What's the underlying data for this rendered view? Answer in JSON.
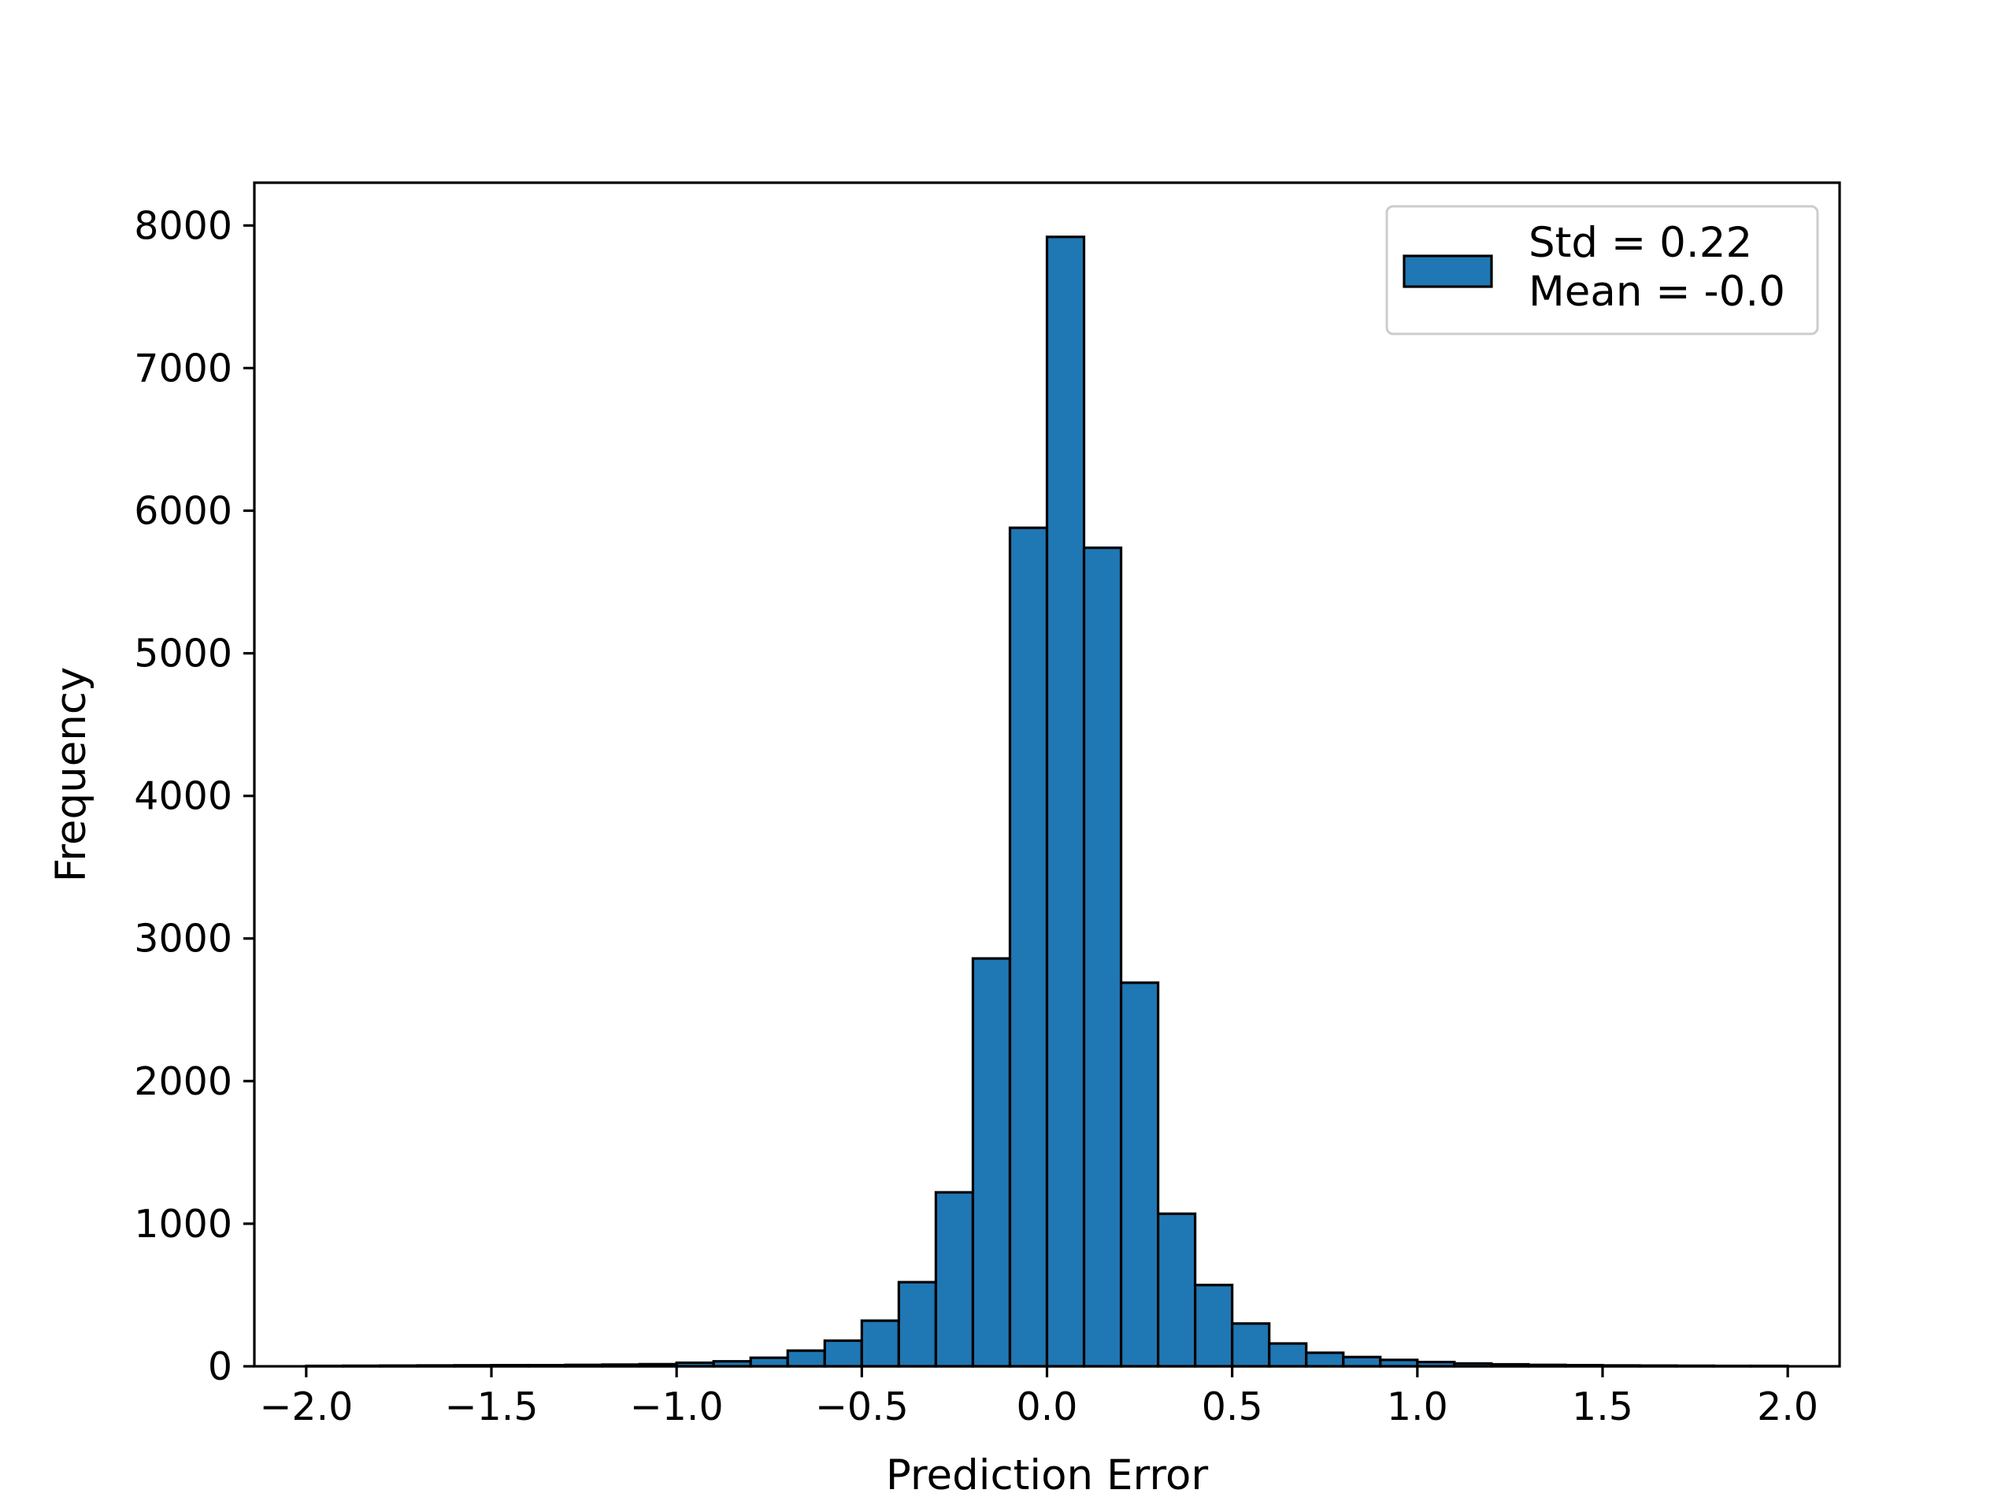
{
  "chart_data": {
    "type": "bar",
    "title": "",
    "xlabel": "Prediction Error",
    "ylabel": "Frequency",
    "xlim": [
      -2.14,
      2.14
    ],
    "ylim": [
      0,
      8300
    ],
    "x_ticks": [
      -2.0,
      -1.5,
      -1.0,
      -0.5,
      0.0,
      0.5,
      1.0,
      1.5,
      2.0
    ],
    "x_tick_labels": [
      "−2.0",
      "−1.5",
      "−1.0",
      "−0.5",
      "0.0",
      "0.5",
      "1.0",
      "1.5",
      "2.0"
    ],
    "y_ticks": [
      0,
      1000,
      2000,
      3000,
      4000,
      5000,
      6000,
      7000,
      8000
    ],
    "y_tick_labels": [
      "0",
      "1000",
      "2000",
      "3000",
      "4000",
      "5000",
      "6000",
      "7000",
      "8000"
    ],
    "bin_edges": [
      -2.0,
      -1.9,
      -1.8,
      -1.7,
      -1.6,
      -1.5,
      -1.4,
      -1.3,
      -1.2,
      -1.1,
      -1.0,
      -0.9,
      -0.8,
      -0.7,
      -0.6,
      -0.5,
      -0.4,
      -0.3,
      -0.2,
      -0.1,
      0.0,
      0.1,
      0.2,
      0.3,
      0.4,
      0.5,
      0.6,
      0.7,
      0.8,
      0.9,
      1.0,
      1.1,
      1.2,
      1.3,
      1.4,
      1.5,
      1.6,
      1.7,
      1.8,
      1.9,
      2.0
    ],
    "values": [
      3,
      4,
      5,
      6,
      7,
      8,
      8,
      10,
      12,
      15,
      25,
      35,
      60,
      110,
      180,
      320,
      590,
      1220,
      2860,
      5880,
      7920,
      5740,
      2690,
      1070,
      570,
      300,
      160,
      95,
      65,
      45,
      30,
      20,
      14,
      10,
      8,
      6,
      5,
      4,
      3,
      3
    ],
    "series": [
      {
        "name": "Std = 0.22\nMean = -0.0",
        "color": "#1f77b4",
        "edgecolor": "#000000"
      }
    ],
    "legend": {
      "position": "upper right",
      "lines": [
        "Std = 0.22",
        "Mean = -0.0"
      ]
    },
    "grid": false
  }
}
